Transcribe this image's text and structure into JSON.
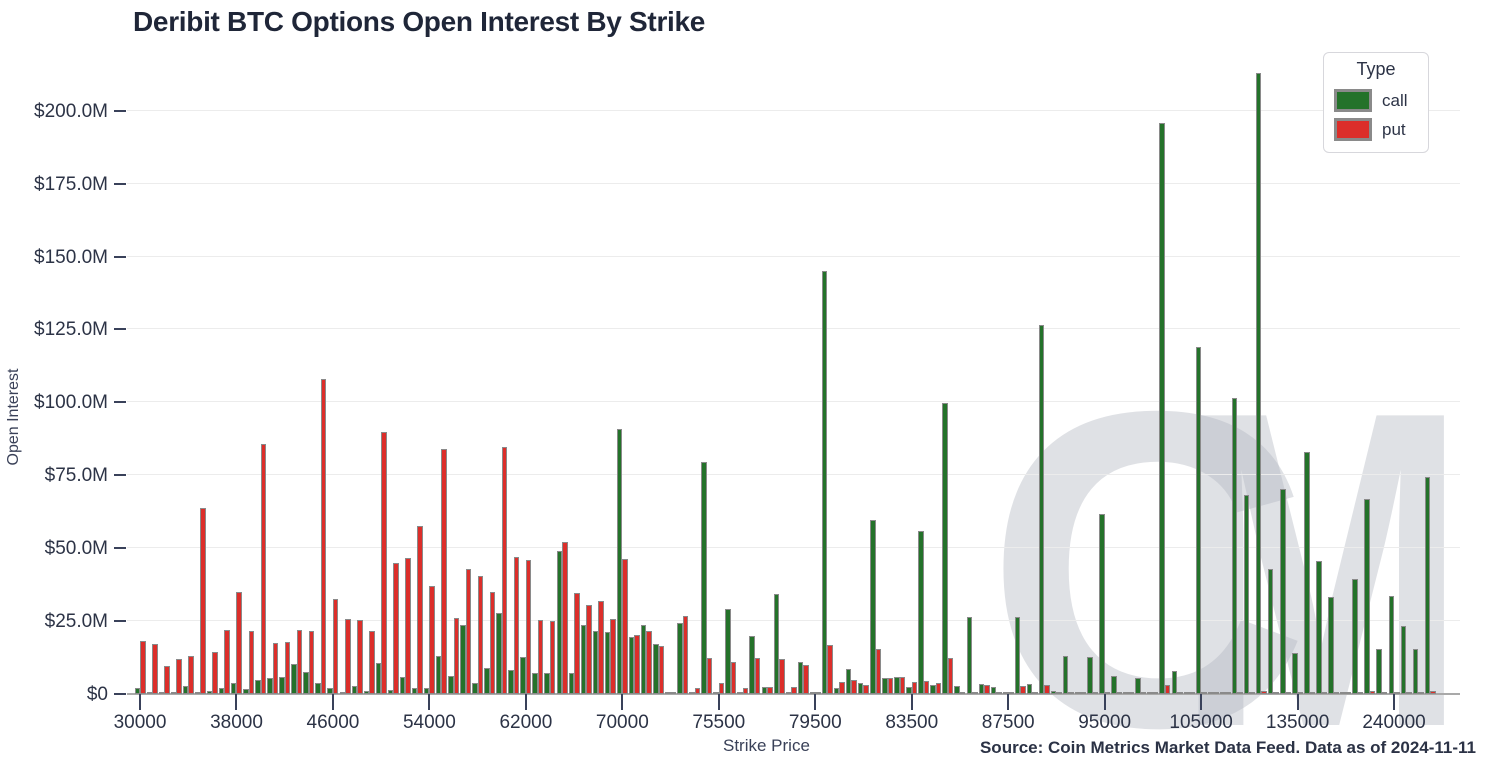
{
  "header": {
    "title": "Deribit BTC Options Open Interest By Strike"
  },
  "legend": {
    "title": "Type",
    "items": [
      {
        "label": "call",
        "color": "#24722a"
      },
      {
        "label": "put",
        "color": "#dc2e2a"
      }
    ]
  },
  "axes": {
    "y_title": "Open Interest",
    "x_title": "Strike Price"
  },
  "source_note": "Source: Coin Metrics Market Data Feed. Data as of 2024-11-11",
  "watermark": {
    "letters": [
      "C",
      "M"
    ],
    "name": "coin-metrics-watermark"
  },
  "chart_data": {
    "type": "bar",
    "grouped": true,
    "title": "Deribit BTC Options Open Interest By Strike",
    "xlabel": "Strike Price",
    "ylabel": "Open Interest",
    "ylim": [
      0,
      217.4
    ],
    "grid": true,
    "legend_position": "top-right",
    "y_ticks": [
      {
        "value": 0,
        "label": "$0"
      },
      {
        "value": 25,
        "label": "$25.0M"
      },
      {
        "value": 50,
        "label": "$50.0M"
      },
      {
        "value": 75,
        "label": "$75.0M"
      },
      {
        "value": 100,
        "label": "$100.0M"
      },
      {
        "value": 125,
        "label": "$125.0M"
      },
      {
        "value": 150,
        "label": "$150.0M"
      },
      {
        "value": 175,
        "label": "$175.0M"
      },
      {
        "value": 200,
        "label": "$200.0M"
      }
    ],
    "x_tick_indices": [
      0,
      8,
      16,
      24,
      32,
      40,
      48,
      56,
      64,
      72,
      80,
      88,
      96,
      104
    ],
    "categories": [
      30000,
      31000,
      32000,
      33000,
      34000,
      35000,
      36000,
      37000,
      38000,
      39000,
      40000,
      41000,
      42000,
      43000,
      44000,
      45000,
      46000,
      47000,
      48000,
      49000,
      50000,
      51000,
      52000,
      53000,
      54000,
      55000,
      56000,
      57000,
      58000,
      59000,
      60000,
      61000,
      62000,
      63000,
      64000,
      65000,
      66000,
      67000,
      68000,
      69000,
      70000,
      71000,
      72000,
      73000,
      73500,
      74000,
      74500,
      75000,
      75500,
      76000,
      76500,
      77000,
      77500,
      78000,
      78500,
      79000,
      79500,
      80000,
      80500,
      81000,
      81500,
      82000,
      82500,
      83000,
      83500,
      84000,
      84500,
      85000,
      85500,
      86000,
      86500,
      87000,
      87500,
      88000,
      89000,
      90000,
      91000,
      92000,
      93000,
      94000,
      95000,
      96000,
      97000,
      98000,
      99000,
      100000,
      102000,
      104000,
      105000,
      106000,
      108000,
      110000,
      115000,
      120000,
      125000,
      130000,
      135000,
      140000,
      150000,
      160000,
      170000,
      180000,
      200000,
      220000,
      240000,
      250000,
      260000,
      280000
    ],
    "series": [
      {
        "name": "call",
        "unit": "USD millions",
        "values": [
          2.0,
          0.4,
          0.3,
          0.5,
          2.7,
          0.8,
          1.0,
          2.0,
          3.9,
          1.7,
          4.8,
          5.4,
          5.7,
          10.3,
          7.7,
          3.7,
          1.9,
          0.5,
          2.7,
          1.0,
          10.5,
          1.5,
          5.9,
          2.0,
          2.0,
          13.0,
          6.3,
          23.7,
          3.9,
          8.8,
          27.9,
          8.2,
          12.6,
          7.3,
          7.2,
          49.0,
          7.1,
          23.7,
          21.6,
          21.3,
          90.9,
          19.6,
          23.5,
          17.0,
          0.7,
          24.2,
          0.3,
          79.4,
          0.5,
          29.0,
          0.3,
          19.9,
          2.5,
          34.3,
          0.5,
          11.1,
          0.4,
          144.9,
          1.9,
          8.5,
          3.7,
          59.7,
          5.4,
          5.9,
          2.5,
          56.0,
          3.1,
          99.7,
          2.7,
          26.5,
          3.4,
          2.5,
          0.6,
          26.3,
          3.5,
          126.5,
          1.0,
          13.0,
          0.5,
          12.6,
          61.7,
          6.3,
          0.4,
          5.5,
          0.3,
          195.8,
          7.9,
          0.3,
          119.0,
          0.2,
          0.2,
          101.6,
          68.2,
          213.0,
          42.7,
          70.3,
          14.2,
          83.0,
          45.7,
          33.3,
          0.8,
          39.4,
          66.8,
          15.6,
          33.6,
          23.3,
          15.3,
          74.5
        ]
      },
      {
        "name": "put",
        "unit": "USD millions",
        "values": [
          18.3,
          17.3,
          9.5,
          12.1,
          13.1,
          63.7,
          14.5,
          22.0,
          35.0,
          21.6,
          85.7,
          17.4,
          17.7,
          21.9,
          21.6,
          107.9,
          32.5,
          25.7,
          25.4,
          21.6,
          90.0,
          45.0,
          46.5,
          57.6,
          37.0,
          83.9,
          26.0,
          42.9,
          40.5,
          35.1,
          84.6,
          46.9,
          45.9,
          25.4,
          25.0,
          52.2,
          34.7,
          30.5,
          31.9,
          25.6,
          46.3,
          20.2,
          21.5,
          16.3,
          0.7,
          26.9,
          1.9,
          12.2,
          3.9,
          10.9,
          2.2,
          12.2,
          2.3,
          11.9,
          2.5,
          9.9,
          0.6,
          16.8,
          4.0,
          4.8,
          3.1,
          15.3,
          5.4,
          5.9,
          4.0,
          4.6,
          3.7,
          12.2,
          0.5,
          0.8,
          3.1,
          0.5,
          0.3,
          2.9,
          0.4,
          3.1,
          0.3,
          0.5,
          0.3,
          0.5,
          0.5,
          0.3,
          0.2,
          0.3,
          0.2,
          3.1,
          0.3,
          0.2,
          0.5,
          0.1,
          0.1,
          0.5,
          0.5,
          1.0,
          0.5,
          0.5,
          0.3,
          0.5,
          0.4,
          0.3,
          0.2,
          0.3,
          1.1,
          0.3,
          0.4,
          0.3,
          0.3,
          1.1
        ]
      }
    ],
    "colors": {
      "call": "#24722a",
      "put": "#dc2e2a",
      "bar_outline": "#8a8a8a"
    }
  }
}
